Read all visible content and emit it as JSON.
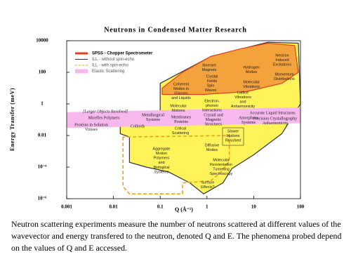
{
  "chart_data": {
    "type": "area",
    "title": "Neutrons in Condensed Matter Research",
    "xlabel": "Q (Å⁻¹)",
    "ylabel": "Energy Transfer (meV)",
    "log_x": true,
    "log_y": true,
    "xlim": [
      0.001,
      100
    ],
    "ylim": [
      1e-06,
      10000
    ],
    "xticks": [
      0.001,
      0.01,
      0.1,
      1,
      10,
      100
    ],
    "yticks": [
      {
        "value": 1e-06,
        "label": "10⁻⁶"
      },
      {
        "value": 0.0001,
        "label": "10⁻⁴"
      },
      0.01,
      1,
      100,
      10000
    ],
    "legend": "upper left",
    "series": [
      {
        "name": "ILL - without spin-echo",
        "color": "#333333",
        "fill": "#fff35a",
        "dashed": false,
        "x": [
          0.014,
          0.014,
          0.1,
          0.1,
          1.2,
          20,
          90,
          100,
          40,
          10,
          3.4,
          2.2,
          0.85,
          0.43,
          0.15,
          0.05,
          0.022,
          0.022
        ],
        "y": [
          0.013,
          0.1,
          0.3,
          20,
          1000,
          8000,
          7000,
          1,
          0.013,
          0.0006,
          8e-05,
          1e-05,
          2e-06,
          1e-05,
          5e-05,
          0.0001,
          0.0002,
          0.008
        ]
      },
      {
        "name": "ILL - with spin-echo",
        "color": "#f0a020",
        "fill": "none",
        "dashed": true,
        "x": [
          0.016,
          0.016,
          0.022,
          0.3,
          0.3,
          1.2,
          2,
          3,
          3
        ],
        "y": [
          0.008,
          6e-06,
          2e-06,
          2e-06,
          1e-05,
          1.3e-05,
          5e-05,
          0.00023,
          0.01
        ]
      },
      {
        "name": "Elastic Scattering",
        "color": "#f7b8ee",
        "fill": "#f7b8ee",
        "dashed": false,
        "x": [
          0.001,
          100,
          100,
          0.001
        ],
        "y": [
          0.3,
          0.6,
          0.06,
          0.03
        ]
      },
      {
        "name": "SPSS - Chopper Spectrometer",
        "color": "#e0401a",
        "fill": "#f4a23c",
        "dashed": false,
        "x": [
          0.11,
          0.3,
          1.2,
          5,
          20,
          75,
          90,
          40,
          7,
          0.85,
          0.11
        ],
        "y": [
          10,
          100,
          1000,
          3000,
          7000,
          5000,
          100,
          20,
          6,
          4,
          4
        ]
      }
    ],
    "annotations": [
      [
        "Neutron",
        "Induced",
        "Excitations"
      ],
      [
        "Hydrogen",
        "Modes"
      ],
      [
        "Momentum",
        "Distributions"
      ],
      [
        "Itinerant",
        "Magnets"
      ],
      [
        "Crystal",
        "Fields"
      ],
      [
        "Molecular",
        "Vibrations"
      ],
      [
        "Lattice",
        "Vibrations",
        "and",
        "Anharmonicity"
      ],
      [
        "Coherent",
        "Modes in",
        "Glasses",
        "and Liquids"
      ],
      [
        "Spin",
        "Waves"
      ],
      [
        "Electron-",
        "phonon",
        "Interactions"
      ],
      [
        "Molecular",
        "Motions"
      ],
      [
        "Accurate Liquid Structures"
      ],
      [
        "Precision Crystallography",
        "Anharmonicity"
      ],
      [
        "Amorphous",
        "Systems"
      ],
      [
        "Crystal and",
        "Magnetic",
        "Structures"
      ],
      [
        "Membranes",
        "Proteins"
      ],
      [
        "Metallurgical",
        "Systems"
      ],
      [
        "Colloids"
      ],
      [
        "[Larger Objects Resolved]"
      ],
      [
        "Micelles Polymers"
      ],
      [
        "Proteins in Solution",
        "Viruses"
      ],
      [
        "Critical",
        "Scattering"
      ],
      [
        "Slower",
        "Motions",
        "Resolved"
      ],
      [
        "Diffusive",
        "Modes"
      ],
      [
        "Aggregate",
        "Motion",
        "Polymers",
        "and",
        "Biological",
        "Systems"
      ],
      [
        "Molecular",
        "Reorientation",
        "Tunneling",
        "Spectroscopy"
      ],
      [
        "Surface",
        "Effects?"
      ]
    ]
  },
  "caption": "Neutron scattering experiments measure the number of neutrons scattered at different values of the wavevector and energy transfered to the neutron, denoted Q and E. The phenomena probed depend on the values of Q and E accessed."
}
